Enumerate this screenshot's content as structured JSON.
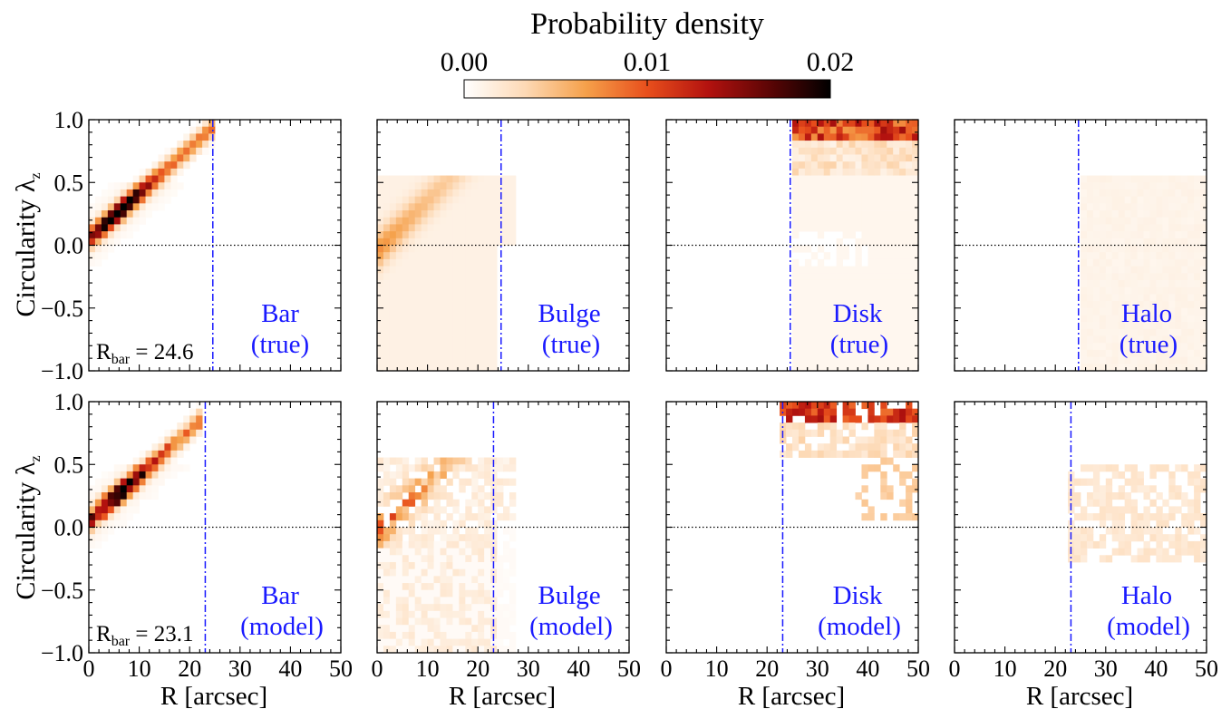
{
  "chart_data": {
    "type": "heatmap",
    "colorbar": {
      "title": "Probability density",
      "ticks": [
        "0.00",
        "0.01",
        "0.02"
      ],
      "range": [
        0,
        0.02
      ],
      "colors": [
        "#ffffff",
        "#fdd9b5",
        "#f5a04a",
        "#e84f1c",
        "#b3120f",
        "#5c0505",
        "#000000"
      ]
    },
    "x_axis": {
      "label": "R [arcsec]",
      "range": [
        0,
        50
      ],
      "ticks": [
        "0",
        "10",
        "20",
        "30",
        "40",
        "50"
      ]
    },
    "y_axis": {
      "label_main": "Circularity λ",
      "label_sub": "z",
      "range": [
        -1,
        1
      ],
      "ticks": [
        "1.0",
        "0.5",
        "0.0",
        "−0.5",
        "−1.0"
      ]
    },
    "reference_line_y": 0.0,
    "rows": [
      {
        "r_bar": 24.6,
        "r_bar_label": "R",
        "r_bar_sub": "bar",
        "r_bar_value": " = 24.6",
        "panels": [
          {
            "component": "Bar",
            "tag": "(true)"
          },
          {
            "component": "Bulge",
            "tag": "(true)"
          },
          {
            "component": "Disk",
            "tag": "(true)"
          },
          {
            "component": "Halo",
            "tag": "(true)"
          }
        ]
      },
      {
        "r_bar": 23.1,
        "r_bar_label": "R",
        "r_bar_sub": "bar",
        "r_bar_value": " = 23.1",
        "panels": [
          {
            "component": "Bar",
            "tag": "(model)"
          },
          {
            "component": "Bulge",
            "tag": "(model)"
          },
          {
            "component": "Disk",
            "tag": "(model)"
          },
          {
            "component": "Halo",
            "tag": "(model)"
          }
        ]
      }
    ]
  }
}
